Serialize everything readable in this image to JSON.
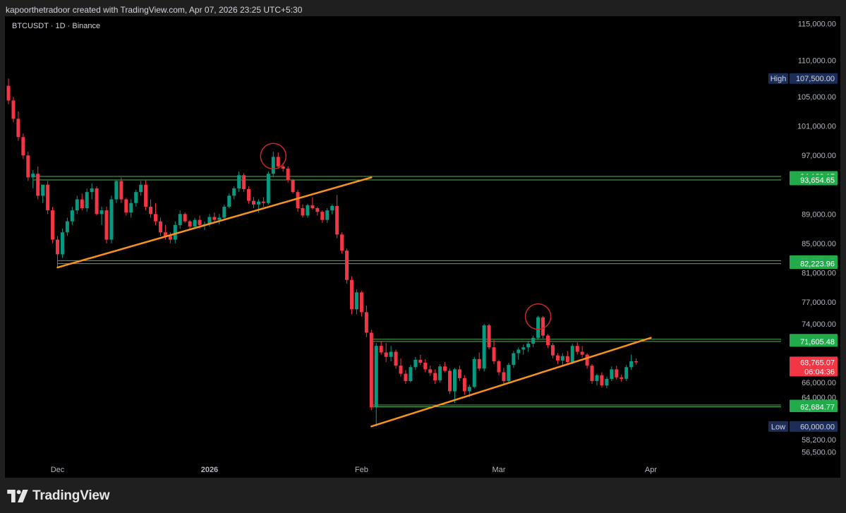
{
  "header": {
    "caption": "kapoorthetradoor created with TradingView.com, Apr 07, 2026 23:25 UTC+5:30"
  },
  "chart": {
    "symbol_label": "BTCUSDT · 1D · Binance"
  },
  "footer": {
    "logo_text": "TradingView"
  },
  "colors": {
    "background": "#000000",
    "up_candle": "#089981",
    "down_candle": "#f23645",
    "trendline": "#f7931a",
    "level_line": "#4caf50",
    "circle": "#c62828",
    "label_green": "#22ab4a",
    "label_blue": "#1c2d5a",
    "label_red": "#f23645",
    "axis_text": "#b2b5be"
  },
  "chart_data": {
    "type": "candlestick",
    "price_scale": {
      "ylim": [
        55700,
        116000
      ],
      "ticks": [
        "115,000.00",
        "110,000.00",
        "105,000.00",
        "101,000.00",
        "97,000.00",
        "89,000.00",
        "85,000.00",
        "81,000.00",
        "77,000.00",
        "74,000.00",
        "66,000.00",
        "64,000.00",
        "58,200.00",
        "56,500.00"
      ]
    },
    "time_axis": {
      "labels": [
        {
          "text": "Dec",
          "bar": 10,
          "bold": false
        },
        {
          "text": "2026",
          "bar": 41,
          "bold": true
        },
        {
          "text": "Feb",
          "bar": 72,
          "bold": false
        },
        {
          "text": "Mar",
          "bar": 100,
          "bold": false
        },
        {
          "text": "Apr",
          "bar": 131,
          "bold": false
        }
      ]
    },
    "candles": [
      [
        106500,
        107500,
        104000,
        104500
      ],
      [
        104500,
        105000,
        101500,
        102000
      ],
      [
        102000,
        103000,
        99000,
        99500
      ],
      [
        99500,
        100000,
        96500,
        97000
      ],
      [
        97000,
        97500,
        93500,
        94000
      ],
      [
        94000,
        95000,
        92500,
        94500
      ],
      [
        94500,
        95500,
        91000,
        91500
      ],
      [
        91500,
        93000,
        90500,
        93000
      ],
      [
        93000,
        93500,
        89000,
        89500
      ],
      [
        89500,
        90000,
        85000,
        85500
      ],
      [
        85500,
        86000,
        81800,
        83500
      ],
      [
        83500,
        87000,
        83000,
        86500
      ],
      [
        86500,
        88500,
        86000,
        88000
      ],
      [
        88000,
        90000,
        87500,
        89500
      ],
      [
        89500,
        91500,
        89000,
        91000
      ],
      [
        91000,
        91800,
        89500,
        89800
      ],
      [
        89800,
        92500,
        89300,
        92000
      ],
      [
        92000,
        93200,
        91000,
        92500
      ],
      [
        92500,
        92800,
        88800,
        89000
      ],
      [
        89000,
        90000,
        87500,
        89500
      ],
      [
        89500,
        90000,
        85000,
        85500
      ],
      [
        85500,
        91500,
        85000,
        91000
      ],
      [
        91000,
        93700,
        90500,
        93500
      ],
      [
        93500,
        94000,
        90500,
        91000
      ],
      [
        91000,
        91200,
        88800,
        89200
      ],
      [
        89200,
        91000,
        88500,
        90500
      ],
      [
        90500,
        92300,
        90000,
        92000
      ],
      [
        92000,
        93500,
        91500,
        93000
      ],
      [
        93000,
        93600,
        89500,
        90000
      ],
      [
        90000,
        91000,
        88500,
        89000
      ],
      [
        89000,
        90500,
        87500,
        88000
      ],
      [
        88000,
        88500,
        86000,
        86500
      ],
      [
        86500,
        87500,
        85500,
        86000
      ],
      [
        86000,
        86500,
        85000,
        85500
      ],
      [
        85500,
        88000,
        85000,
        87500
      ],
      [
        87500,
        89500,
        87000,
        89000
      ],
      [
        89000,
        89200,
        87800,
        88000
      ],
      [
        88000,
        88200,
        86800,
        87300
      ],
      [
        87300,
        88500,
        87000,
        88200
      ],
      [
        88200,
        88800,
        87000,
        87500
      ],
      [
        87500,
        88000,
        86800,
        87600
      ],
      [
        87600,
        89000,
        87300,
        88600
      ],
      [
        88600,
        89200,
        87800,
        88200
      ],
      [
        88200,
        89000,
        87600,
        88500
      ],
      [
        88500,
        90300,
        88200,
        90000
      ],
      [
        90000,
        91800,
        89800,
        91500
      ],
      [
        91500,
        92800,
        91000,
        92500
      ],
      [
        92500,
        94800,
        92000,
        94300
      ],
      [
        94300,
        94600,
        92000,
        92400
      ],
      [
        92400,
        92800,
        90400,
        90800
      ],
      [
        90800,
        91300,
        89800,
        90300
      ],
      [
        90300,
        91000,
        89200,
        90700
      ],
      [
        90700,
        91300,
        90000,
        90500
      ],
      [
        90500,
        94800,
        90300,
        94500
      ],
      [
        94500,
        97500,
        94000,
        96800
      ],
      [
        96800,
        97400,
        95200,
        95500
      ],
      [
        95500,
        96000,
        94800,
        95200
      ],
      [
        95200,
        95500,
        93300,
        93600
      ],
      [
        93600,
        93800,
        91800,
        92000
      ],
      [
        92000,
        92300,
        89300,
        89800
      ],
      [
        89800,
        90300,
        88500,
        88800
      ],
      [
        88800,
        90400,
        88500,
        90200
      ],
      [
        90200,
        91300,
        89600,
        89800
      ],
      [
        89800,
        90000,
        88800,
        89300
      ],
      [
        89300,
        89500,
        87800,
        88200
      ],
      [
        88200,
        89800,
        87800,
        89500
      ],
      [
        89500,
        90300,
        89000,
        90100
      ],
      [
        90100,
        91600,
        85700,
        86200
      ],
      [
        86200,
        86500,
        83600,
        84000
      ],
      [
        84000,
        84300,
        79500,
        80000
      ],
      [
        80000,
        80500,
        75300,
        76000
      ],
      [
        76000,
        78700,
        75300,
        78300
      ],
      [
        78300,
        78500,
        75000,
        75600
      ],
      [
        75600,
        76500,
        72200,
        72800
      ],
      [
        72800,
        73200,
        62200,
        62600
      ],
      [
        62600,
        71400,
        60000,
        71000
      ],
      [
        71000,
        71600,
        69800,
        70100
      ],
      [
        70100,
        71400,
        68800,
        69500
      ],
      [
        69500,
        71000,
        68900,
        70200
      ],
      [
        70200,
        70500,
        67900,
        68300
      ],
      [
        68300,
        69300,
        66800,
        67200
      ],
      [
        67200,
        67700,
        65800,
        66200
      ],
      [
        66200,
        68400,
        66000,
        68100
      ],
      [
        68100,
        69500,
        67700,
        69100
      ],
      [
        69100,
        69800,
        68400,
        68700
      ],
      [
        68700,
        69200,
        67400,
        67800
      ],
      [
        67800,
        68300,
        66900,
        67300
      ],
      [
        67300,
        67800,
        65800,
        66300
      ],
      [
        66300,
        68500,
        66000,
        68200
      ],
      [
        68200,
        68800,
        67400,
        67600
      ],
      [
        67600,
        67900,
        64400,
        64800
      ],
      [
        64800,
        68000,
        63200,
        67800
      ],
      [
        67800,
        68300,
        66200,
        66600
      ],
      [
        66600,
        67000,
        64300,
        64800
      ],
      [
        64800,
        65700,
        64000,
        65400
      ],
      [
        65400,
        69500,
        65200,
        69200
      ],
      [
        69200,
        70100,
        67600,
        67900
      ],
      [
        67900,
        74000,
        67500,
        73800
      ],
      [
        73800,
        74000,
        70500,
        70800
      ],
      [
        70800,
        71800,
        68500,
        68900
      ],
      [
        68900,
        69100,
        67000,
        67400
      ],
      [
        67400,
        68000,
        65800,
        66200
      ],
      [
        66200,
        68700,
        65900,
        68400
      ],
      [
        68400,
        70300,
        68000,
        70000
      ],
      [
        70000,
        70800,
        69100,
        70500
      ],
      [
        70500,
        71200,
        69800,
        70800
      ],
      [
        70800,
        71700,
        70200,
        71300
      ],
      [
        71300,
        72400,
        70800,
        72100
      ],
      [
        72100,
        75100,
        71800,
        74900
      ],
      [
        74900,
        75100,
        72000,
        72400
      ],
      [
        72400,
        72600,
        70700,
        71100
      ],
      [
        71100,
        71400,
        69300,
        69700
      ],
      [
        69700,
        70000,
        68500,
        69000
      ],
      [
        69000,
        70000,
        68200,
        69600
      ],
      [
        69600,
        70300,
        68400,
        68800
      ],
      [
        68800,
        71300,
        68500,
        71000
      ],
      [
        71000,
        71500,
        69800,
        70200
      ],
      [
        70200,
        71000,
        69400,
        69800
      ],
      [
        69800,
        70000,
        67900,
        68300
      ],
      [
        68300,
        68500,
        65800,
        66200
      ],
      [
        66200,
        67200,
        65600,
        67000
      ],
      [
        67000,
        67400,
        65300,
        65600
      ],
      [
        65600,
        66800,
        65200,
        66500
      ],
      [
        66500,
        68200,
        66200,
        67800
      ],
      [
        67800,
        68300,
        66400,
        66700
      ],
      [
        66700,
        67100,
        66100,
        66500
      ],
      [
        66500,
        68400,
        66200,
        68100
      ],
      [
        68100,
        69800,
        67700,
        68900
      ],
      [
        68900,
        69300,
        68400,
        68765
      ]
    ],
    "levels": [
      {
        "price": 94139.17,
        "label": "94,139.17",
        "start_bar": 5
      },
      {
        "price": 93654.65,
        "label": "93,654.65",
        "start_bar": 5
      },
      {
        "price": 82639.15,
        "label": "82,639.15",
        "start_bar": 10
      },
      {
        "price": 82223.96,
        "label": "82,223.96",
        "start_bar": 10
      },
      {
        "price": 71909.21,
        "label": "71,909.21",
        "start_bar": 74
      },
      {
        "price": 71605.48,
        "label": "71,605.48",
        "start_bar": 74
      },
      {
        "price": 62927.83,
        "label": "62,927.83",
        "start_bar": 74
      },
      {
        "price": 62684.77,
        "label": "62,684.77",
        "start_bar": 74
      }
    ],
    "trendlines": [
      {
        "from": {
          "bar": 10,
          "price": 81700
        },
        "to": {
          "bar": 74,
          "price": 94000
        }
      },
      {
        "from": {
          "bar": 74,
          "price": 60000
        },
        "to": {
          "bar": 131,
          "price": 72100
        }
      }
    ],
    "circles": [
      {
        "bar": 54,
        "price": 96900
      },
      {
        "bar": 108,
        "price": 75000
      }
    ],
    "badges": {
      "high": {
        "tag": "High",
        "value": "107,500.00",
        "price": 107500
      },
      "low": {
        "tag": "Low",
        "value": "60,000.00",
        "price": 60000
      },
      "last": {
        "value": "68,765.07",
        "countdown": "06:04:36",
        "price": 68765.07
      }
    }
  }
}
